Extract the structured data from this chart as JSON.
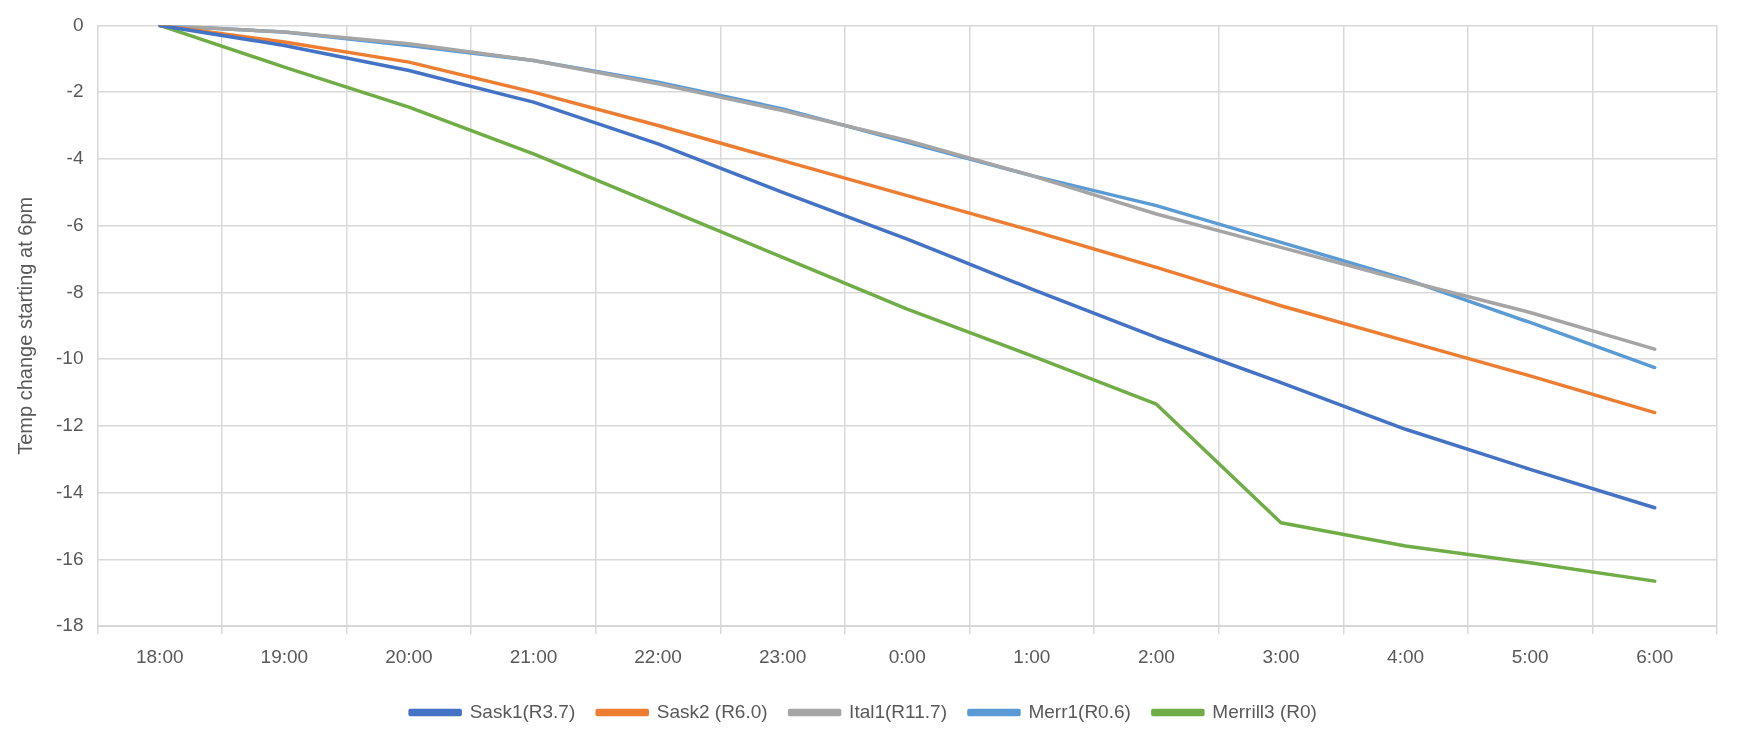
{
  "chart_data": {
    "type": "line",
    "ylabel": "Temp change starting at 6pm",
    "categories": [
      "18:00",
      "19:00",
      "20:00",
      "21:00",
      "22:00",
      "23:00",
      "0:00",
      "1:00",
      "2:00",
      "3:00",
      "4:00",
      "5:00",
      "6:00"
    ],
    "series": [
      {
        "name": "Sask1(R3.7)",
        "color": "#4472c4",
        "values": [
          0,
          -0.6,
          -1.35,
          -2.3,
          -3.55,
          -5.0,
          -6.4,
          -7.9,
          -9.35,
          -10.7,
          -12.1,
          -13.3,
          -14.45
        ]
      },
      {
        "name": "Sask2 (R6.0)",
        "color": "#ed7d31",
        "values": [
          0,
          -0.5,
          -1.1,
          -2.0,
          -3.0,
          -4.05,
          -5.1,
          -6.15,
          -7.25,
          -8.4,
          -9.45,
          -10.5,
          -11.6
        ]
      },
      {
        "name": "Ital1(R11.7)",
        "color": "#a5a5a5",
        "values": [
          0,
          -0.2,
          -0.55,
          -1.05,
          -1.75,
          -2.55,
          -3.45,
          -4.5,
          -5.65,
          -6.65,
          -7.65,
          -8.6,
          -9.7
        ]
      },
      {
        "name": "Merr1(R0.6)",
        "color": "#5b9bd5",
        "values": [
          0,
          -0.2,
          -0.6,
          -1.05,
          -1.7,
          -2.5,
          -3.5,
          -4.5,
          -5.4,
          -6.5,
          -7.6,
          -8.9,
          -10.25
        ]
      },
      {
        "name": "Merrill3 (R0)",
        "color": "#70ad47",
        "values": [
          0,
          -1.25,
          -2.45,
          -3.85,
          -5.4,
          -6.95,
          -8.5,
          -9.9,
          -11.35,
          -14.9,
          -15.6,
          -16.1,
          -16.65
        ]
      }
    ],
    "ylim": [
      -18,
      0
    ],
    "yticks": [
      -18,
      -16,
      -14,
      -12,
      -10,
      -8,
      -6,
      -4,
      -2,
      0
    ],
    "grid": true,
    "legend": "bottom",
    "marker": "none",
    "line_style": "solid"
  }
}
